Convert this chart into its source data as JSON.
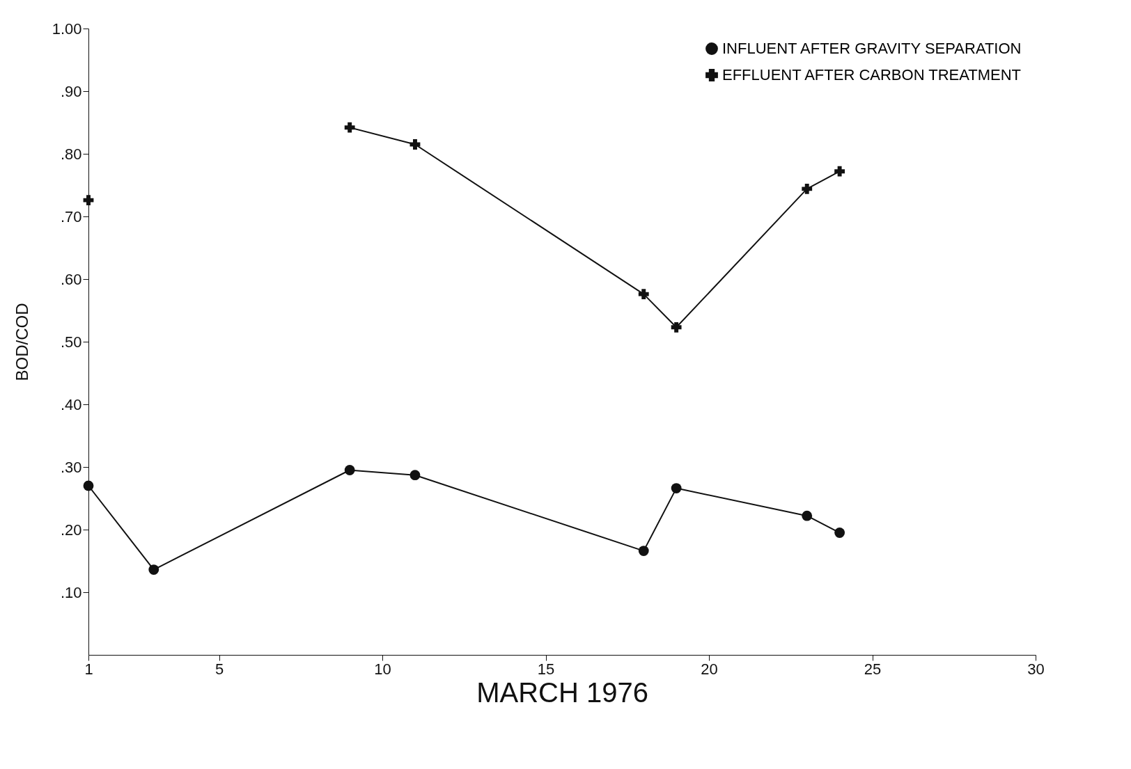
{
  "chart_data": {
    "type": "line",
    "xlabel": "MARCH 1976",
    "ylabel": "BOD/COD",
    "x": [
      1,
      3,
      9,
      11,
      18,
      19,
      23,
      24
    ],
    "series": [
      {
        "name": "INFLUENT AFTER GRAVITY SEPARATION",
        "color": "#111111",
        "marker": "circle",
        "values": [
          0.27,
          0.136,
          0.295,
          0.287,
          0.166,
          0.266,
          0.222,
          0.195
        ]
      },
      {
        "name": "EFFLUENT AFTER CARBON TREATMENT",
        "color": "#111111",
        "marker": "cross",
        "values": [
          0.726,
          null,
          0.842,
          0.815,
          0.576,
          0.523,
          0.744,
          0.772
        ]
      }
    ],
    "xlim": [
      1,
      30
    ],
    "xticks": [
      1,
      5,
      10,
      15,
      20,
      25,
      30
    ],
    "ylim": [
      0,
      1.0
    ],
    "yticks": [
      {
        "value": 0.1,
        "label": ".10"
      },
      {
        "value": 0.2,
        "label": ".20"
      },
      {
        "value": 0.3,
        "label": ".30"
      },
      {
        "value": 0.4,
        "label": ".40"
      },
      {
        "value": 0.5,
        "label": ".50"
      },
      {
        "value": 0.6,
        "label": ".60"
      },
      {
        "value": 0.7,
        "label": ".70"
      },
      {
        "value": 0.8,
        "label": ".80"
      },
      {
        "value": 0.9,
        "label": ".90"
      },
      {
        "value": 1.0,
        "label": "1.00"
      }
    ],
    "grid": false,
    "legend": "top right",
    "line_style": "solid"
  }
}
